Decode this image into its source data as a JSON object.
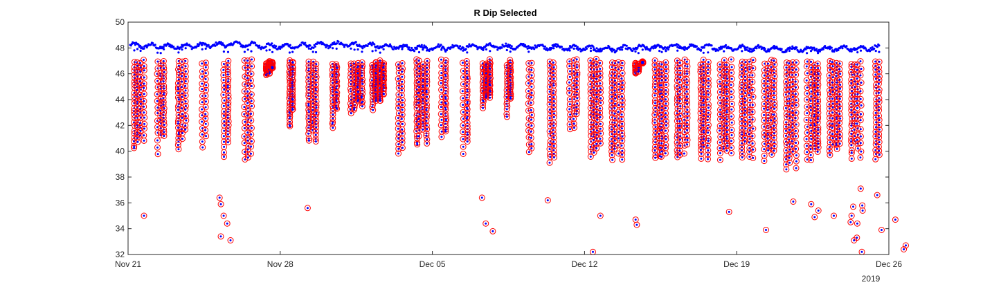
{
  "chart_data": {
    "type": "scatter",
    "title": "R Dip Selected",
    "xlabel": "",
    "ylabel": "",
    "xlim": [
      "2019-11-21",
      "2019-12-26"
    ],
    "ylim": [
      32,
      50
    ],
    "x_tick_labels": [
      "Nov 21",
      "Nov 28",
      "Dec 05",
      "Dec 12",
      "Dec 19",
      "Dec 26"
    ],
    "x_tick_values": [
      "2019-11-21",
      "2019-11-28",
      "2019-12-05",
      "2019-12-12",
      "2019-12-19",
      "2019-12-26"
    ],
    "y_ticks": [
      32,
      34,
      36,
      38,
      40,
      42,
      44,
      46,
      48,
      50
    ],
    "x_secondary_label": "2019",
    "grid": false,
    "colors": {
      "all_points": "#0000ff",
      "selected_markers": "#ff0000",
      "axis": "#262626"
    },
    "series": [
      {
        "marker": "dot",
        "color": "#0000ff",
        "baseline": [
          [
            "2019-11-21",
            48.2
          ],
          [
            "2019-11-23",
            48.1
          ],
          [
            "2019-11-26",
            48.3
          ],
          [
            "2019-11-28",
            48.1
          ],
          [
            "2019-12-01",
            48.3
          ],
          [
            "2019-12-04",
            48.0
          ],
          [
            "2019-12-07",
            48.1
          ],
          [
            "2019-12-10",
            48.1
          ],
          [
            "2019-12-13",
            47.9
          ],
          [
            "2019-12-16",
            48.1
          ],
          [
            "2019-12-19",
            48.0
          ],
          [
            "2019-12-22",
            47.9
          ],
          [
            "2019-12-25",
            48.0
          ]
        ]
      },
      {
        "marker": "circle",
        "color": "#ff0000",
        "dips": [
          {
            "x": "2019-11-21",
            "bottom": 40.0
          },
          {
            "x": "2019-11-22",
            "bottom": 39.8
          },
          {
            "x": "2019-11-23",
            "bottom": 40.2
          },
          {
            "x": "2019-11-24",
            "bottom": 40.1
          },
          {
            "x": "2019-11-25",
            "bottom": 39.4
          },
          {
            "x": "2019-11-26",
            "bottom": 39.4
          },
          {
            "x": "2019-11-27",
            "bottom": 45.9
          },
          {
            "x": "2019-11-28",
            "bottom": 41.8
          },
          {
            "x": "2019-11-29",
            "bottom": 40.6
          },
          {
            "x": "2019-11-30",
            "bottom": 41.8
          },
          {
            "x": "2019-12-01",
            "bottom": 42.7
          },
          {
            "x": "2019-12-02",
            "bottom": 43.1
          },
          {
            "x": "2019-12-03",
            "bottom": 39.7
          },
          {
            "x": "2019-12-04",
            "bottom": 40.4
          },
          {
            "x": "2019-12-05",
            "bottom": 40.9
          },
          {
            "x": "2019-12-06",
            "bottom": 39.7
          },
          {
            "x": "2019-12-07",
            "bottom": 43.3
          },
          {
            "x": "2019-12-08",
            "bottom": 42.6
          },
          {
            "x": "2019-12-09",
            "bottom": 39.8
          },
          {
            "x": "2019-12-10",
            "bottom": 39.1
          },
          {
            "x": "2019-12-11",
            "bottom": 41.6
          },
          {
            "x": "2019-12-12",
            "bottom": 39.6
          },
          {
            "x": "2019-12-13",
            "bottom": 39.3
          },
          {
            "x": "2019-12-14",
            "bottom": 46.0
          },
          {
            "x": "2019-12-15",
            "bottom": 39.4
          },
          {
            "x": "2019-12-16",
            "bottom": 39.4
          },
          {
            "x": "2019-12-17",
            "bottom": 39.3
          },
          {
            "x": "2019-12-18",
            "bottom": 39.2
          },
          {
            "x": "2019-12-19",
            "bottom": 39.3
          },
          {
            "x": "2019-12-20",
            "bottom": 39.2
          },
          {
            "x": "2019-12-21",
            "bottom": 38.6
          },
          {
            "x": "2019-12-22",
            "bottom": 39.3
          },
          {
            "x": "2019-12-23",
            "bottom": 39.6
          },
          {
            "x": "2019-12-24",
            "bottom": 39.3
          },
          {
            "x": "2019-12-25",
            "bottom": 39.2
          }
        ],
        "outliers": [
          [
            "2019-11-21",
            35.0
          ],
          [
            "2019-11-25",
            36.4
          ],
          [
            "2019-11-25",
            35.9
          ],
          [
            "2019-11-25",
            35.0
          ],
          [
            "2019-11-25",
            34.4
          ],
          [
            "2019-11-25",
            33.4
          ],
          [
            "2019-11-25",
            33.1
          ],
          [
            "2019-11-29",
            35.6
          ],
          [
            "2019-12-07",
            36.4
          ],
          [
            "2019-12-07",
            34.4
          ],
          [
            "2019-12-07",
            33.8
          ],
          [
            "2019-12-10",
            36.2
          ],
          [
            "2019-12-12",
            35.0
          ],
          [
            "2019-12-12",
            32.2
          ],
          [
            "2019-12-14",
            34.7
          ],
          [
            "2019-12-14",
            34.3
          ],
          [
            "2019-12-18",
            35.3
          ],
          [
            "2019-12-20",
            33.9
          ],
          [
            "2019-12-21",
            36.1
          ],
          [
            "2019-12-22",
            35.9
          ],
          [
            "2019-12-22",
            35.4
          ],
          [
            "2019-12-22",
            34.9
          ],
          [
            "2019-12-23",
            35.0
          ],
          [
            "2019-12-24",
            35.7
          ],
          [
            "2019-12-24",
            35.4
          ],
          [
            "2019-12-24",
            34.4
          ],
          [
            "2019-12-24",
            32.2
          ],
          [
            "2019-12-24",
            37.1
          ],
          [
            "2019-12-24",
            35.8
          ],
          [
            "2019-12-24",
            35.0
          ],
          [
            "2019-12-24",
            34.5
          ],
          [
            "2019-12-24",
            33.3
          ],
          [
            "2019-12-24",
            33.1
          ],
          [
            "2019-12-25",
            36.6
          ],
          [
            "2019-12-25",
            33.9
          ],
          [
            "2019-12-26",
            34.7
          ],
          [
            "2019-12-26",
            32.7
          ],
          [
            "2019-12-26",
            32.4
          ]
        ]
      }
    ]
  }
}
